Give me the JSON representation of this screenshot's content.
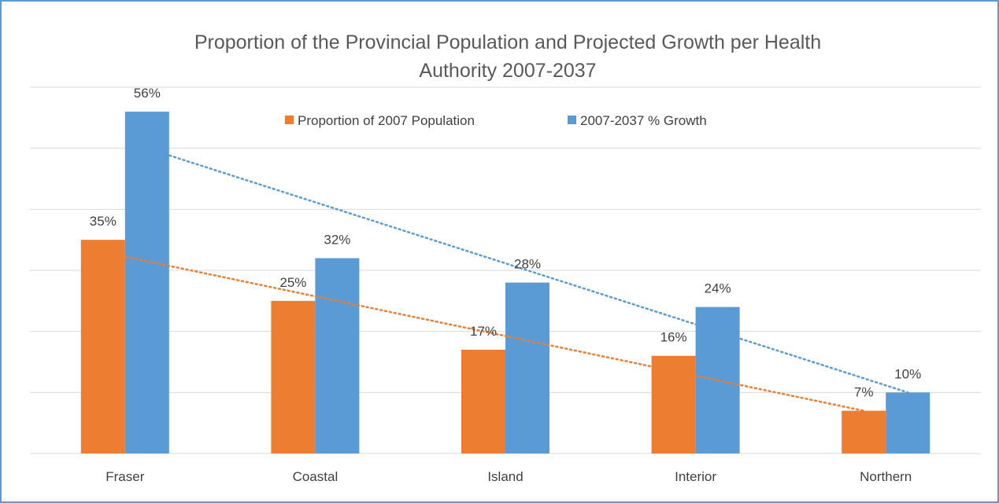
{
  "chart_data": {
    "type": "bar",
    "title": "Proportion of the Provincial Population and Projected Growth per Health Authority 2007-2037",
    "title_lines": [
      "Proportion of the Provincial Population and Projected Growth per Health",
      "Authority 2007-2037"
    ],
    "categories": [
      "Fraser",
      "Coastal",
      "Island",
      "Interior",
      "Northern"
    ],
    "series": [
      {
        "name": "Proportion of 2007 Population",
        "values": [
          35,
          25,
          17,
          16,
          7
        ],
        "labels": [
          "35%",
          "25%",
          "17%",
          "16%",
          "7%"
        ],
        "color": "#ed7d31"
      },
      {
        "name": "2007-2037 % Growth",
        "values": [
          56,
          32,
          28,
          24,
          10
        ],
        "labels": [
          "56%",
          "32%",
          "28%",
          "24%",
          "10%"
        ],
        "color": "#5b9bd5"
      }
    ],
    "trendlines": "linear, dotted, one per series",
    "ylim": [
      0,
      60
    ],
    "grid": true,
    "legend_position": "top-center",
    "frame_color": "#5b9bd5",
    "gridline_color": "#d9d9d9"
  }
}
